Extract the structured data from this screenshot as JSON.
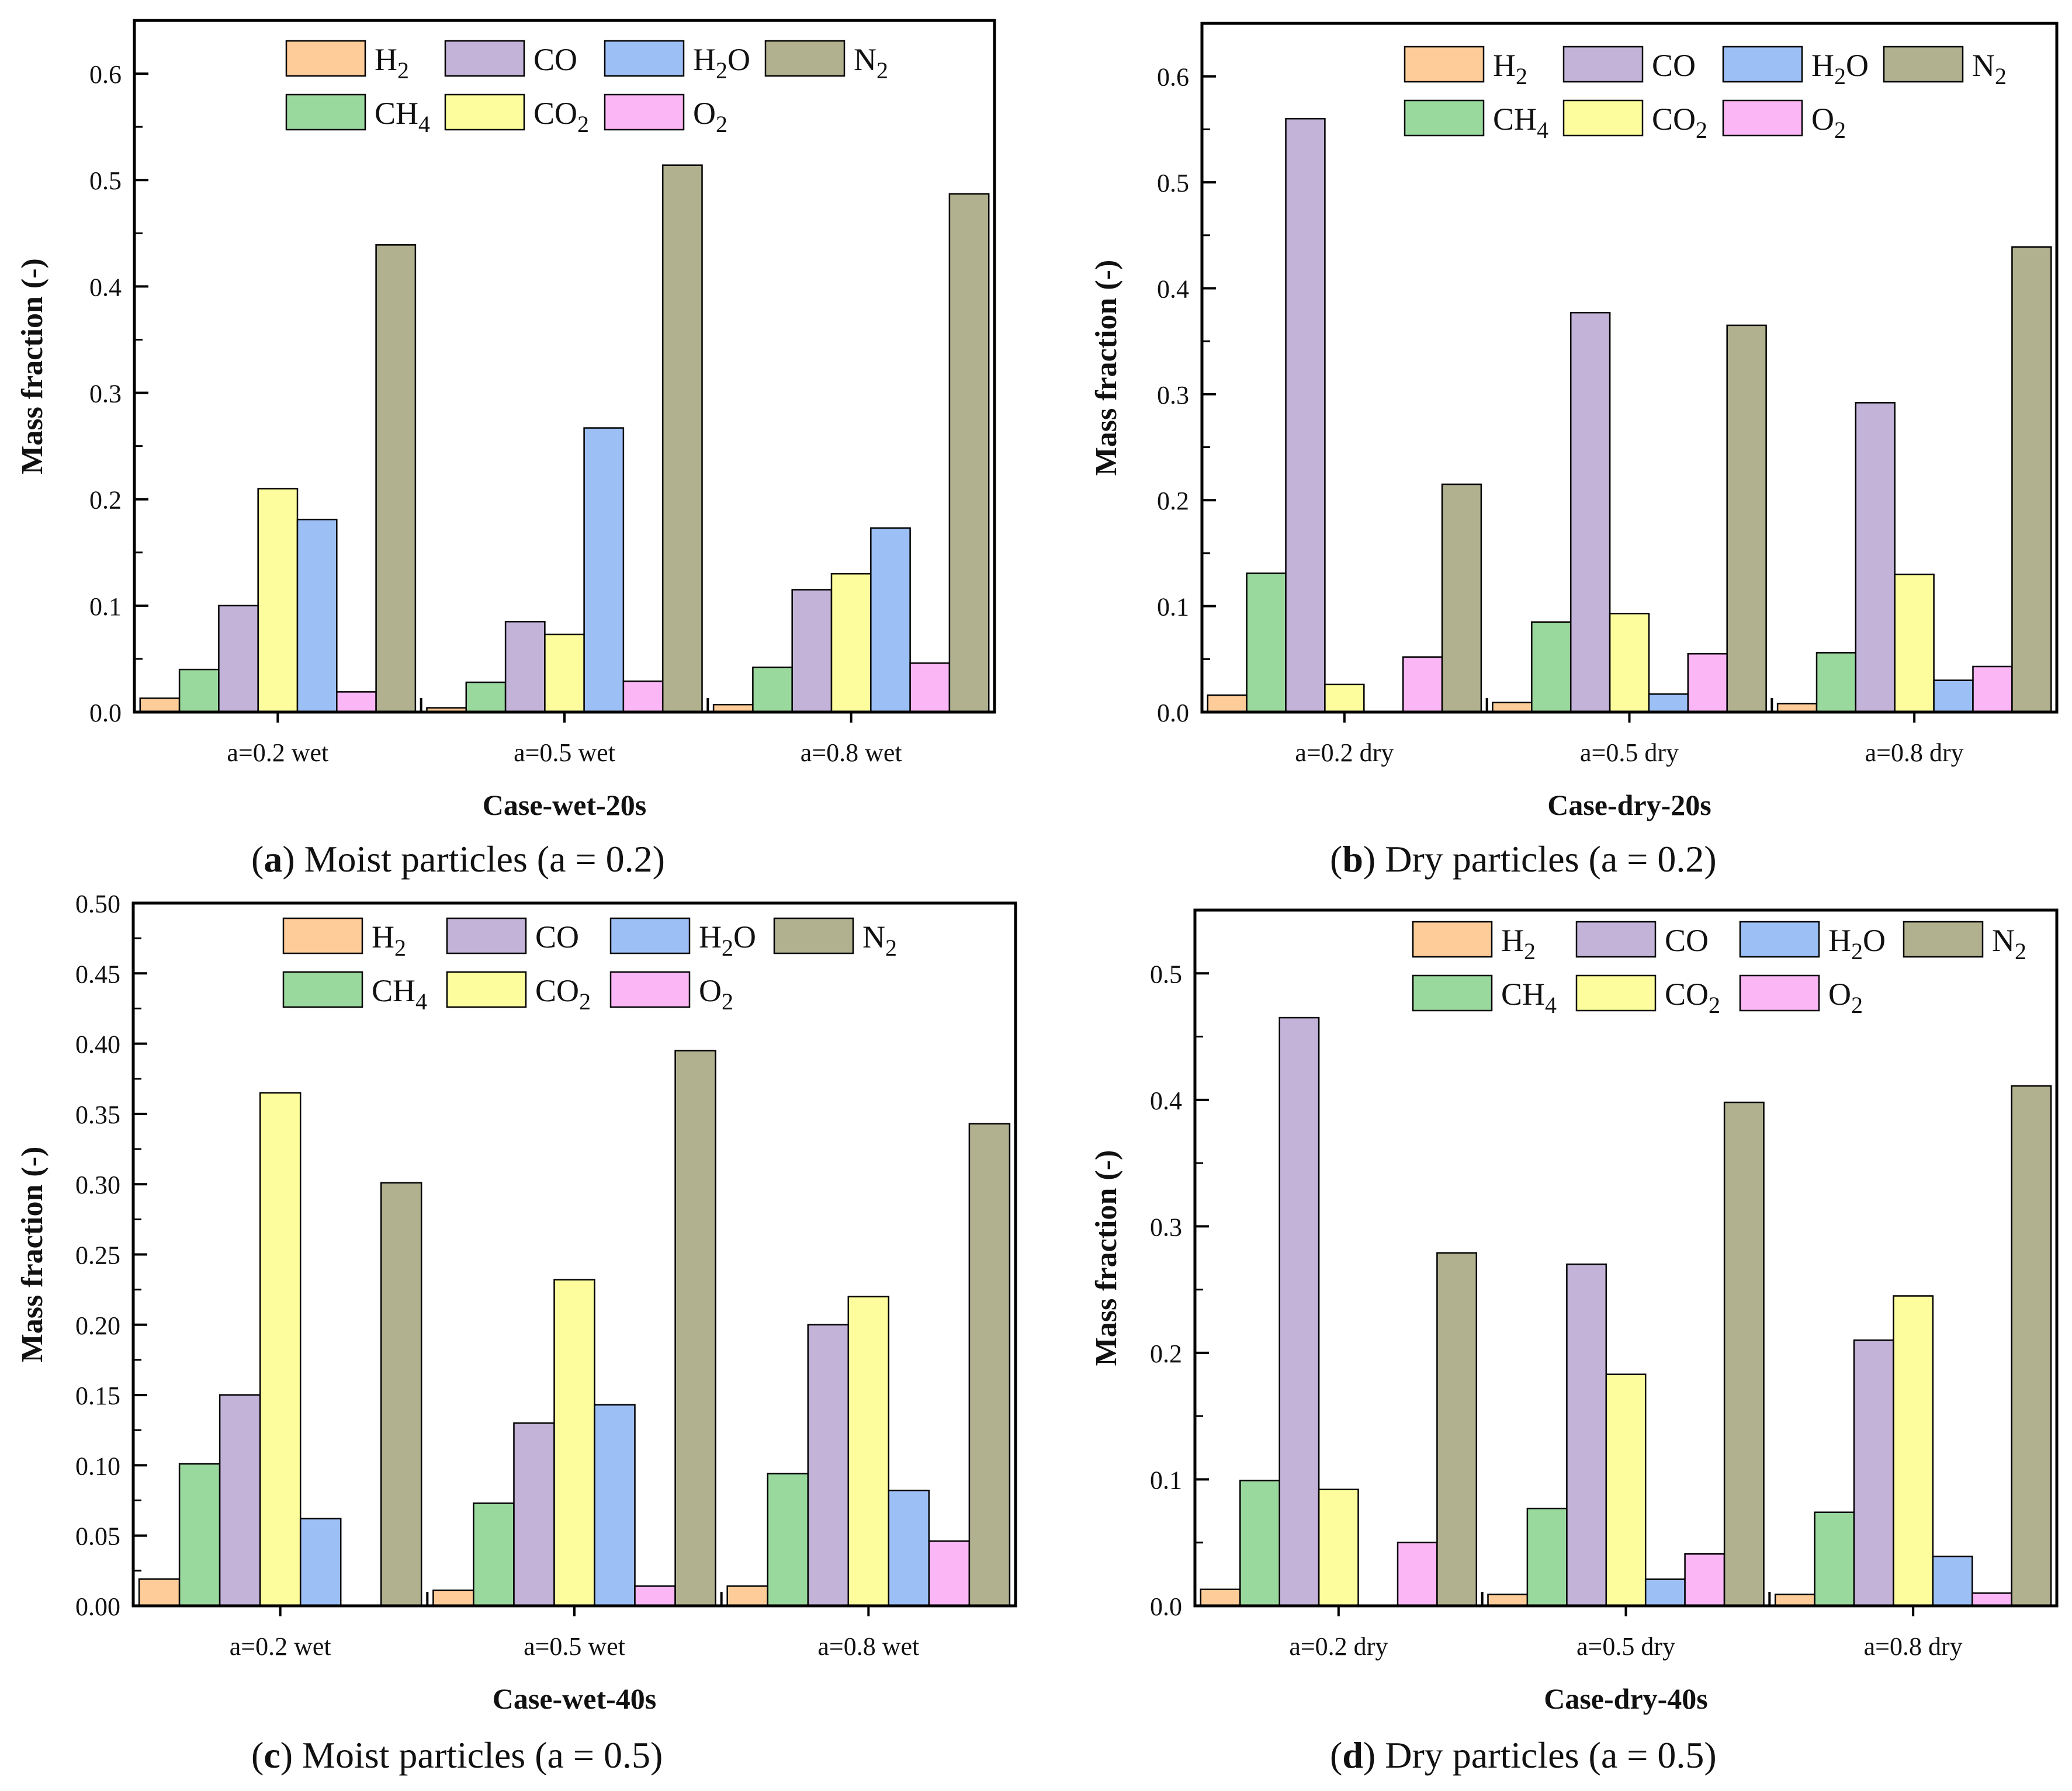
{
  "species": [
    {
      "key": "H2",
      "base": "H",
      "sub": "2",
      "color": "#fdcc99"
    },
    {
      "key": "CH4",
      "base": "CH",
      "sub": "4",
      "color": "#9ad99e"
    },
    {
      "key": "CO",
      "base": "CO",
      "sub": "",
      "color": "#c3b3d8"
    },
    {
      "key": "CO2",
      "base": "CO",
      "sub": "2",
      "color": "#fdfd9e"
    },
    {
      "key": "H2O",
      "base": "H",
      "sub": "2",
      "tail": "O",
      "color": "#9cc0f6"
    },
    {
      "key": "O2",
      "base": "O",
      "sub": "2",
      "color": "#fbb6f5"
    },
    {
      "key": "N2",
      "base": "N",
      "sub": "2",
      "color": "#b1b08f"
    }
  ],
  "captions": [
    {
      "letter": "a",
      "text": " Moist particles (a = 0.2)"
    },
    {
      "letter": "b",
      "text": " Dry particles (a = 0.2)"
    },
    {
      "letter": "c",
      "text": " Moist particles (a = 0.5)"
    },
    {
      "letter": "d",
      "text": " Dry particles (a = 0.5)"
    }
  ],
  "chart_data": [
    {
      "type": "bar",
      "xlabel": "Case-wet-20s",
      "ylabel": "Mass fraction (-)",
      "ylim": [
        0,
        0.65
      ],
      "yticks": [
        "0.0",
        "0.1",
        "0.2",
        "0.3",
        "0.4",
        "0.5",
        "0.6"
      ],
      "categories": [
        "a=0.2 wet",
        "a=0.5 wet",
        "a=0.8 wet"
      ],
      "series": [
        {
          "name": "H2",
          "values": [
            0.013,
            0.004,
            0.007
          ]
        },
        {
          "name": "CH4",
          "values": [
            0.04,
            0.028,
            0.042
          ]
        },
        {
          "name": "CO",
          "values": [
            0.1,
            0.085,
            0.115
          ]
        },
        {
          "name": "CO2",
          "values": [
            0.21,
            0.073,
            0.13
          ]
        },
        {
          "name": "H2O",
          "values": [
            0.181,
            0.267,
            0.173
          ]
        },
        {
          "name": "O2",
          "values": [
            0.019,
            0.029,
            0.046
          ]
        },
        {
          "name": "N2",
          "values": [
            0.439,
            0.514,
            0.487
          ]
        }
      ]
    },
    {
      "type": "bar",
      "xlabel": "Case-dry-20s",
      "ylabel": "Mass fraction (-)",
      "ylim": [
        0,
        0.65
      ],
      "yticks": [
        "0.0",
        "0.1",
        "0.2",
        "0.3",
        "0.4",
        "0.5",
        "0.6"
      ],
      "categories": [
        "a=0.2 dry",
        "a=0.5 dry",
        "a=0.8 dry"
      ],
      "series": [
        {
          "name": "H2",
          "values": [
            0.016,
            0.009,
            0.008
          ]
        },
        {
          "name": "CH4",
          "values": [
            0.131,
            0.085,
            0.056
          ]
        },
        {
          "name": "CO",
          "values": [
            0.56,
            0.377,
            0.292
          ]
        },
        {
          "name": "CO2",
          "values": [
            0.026,
            0.093,
            0.13
          ]
        },
        {
          "name": "H2O",
          "values": [
            0.0,
            0.017,
            0.03
          ]
        },
        {
          "name": "O2",
          "values": [
            0.052,
            0.055,
            0.043
          ]
        },
        {
          "name": "N2",
          "values": [
            0.215,
            0.365,
            0.439
          ]
        }
      ]
    },
    {
      "type": "bar",
      "xlabel": "Case-wet-40s",
      "ylabel": "Mass fraction (-)",
      "ylim": [
        0,
        0.5
      ],
      "yticks": [
        "0.00",
        "0.05",
        "0.10",
        "0.15",
        "0.20",
        "0.25",
        "0.30",
        "0.35",
        "0.40",
        "0.45",
        "0.50"
      ],
      "categories": [
        "a=0.2 wet",
        "a=0.5 wet",
        "a=0.8 wet"
      ],
      "series": [
        {
          "name": "H2",
          "values": [
            0.019,
            0.011,
            0.014
          ]
        },
        {
          "name": "CH4",
          "values": [
            0.101,
            0.073,
            0.094
          ]
        },
        {
          "name": "CO",
          "values": [
            0.15,
            0.13,
            0.2
          ]
        },
        {
          "name": "CO2",
          "values": [
            0.365,
            0.232,
            0.22
          ]
        },
        {
          "name": "H2O",
          "values": [
            0.062,
            0.143,
            0.082
          ]
        },
        {
          "name": "O2",
          "values": [
            0.0,
            0.014,
            0.046
          ]
        },
        {
          "name": "N2",
          "values": [
            0.301,
            0.395,
            0.343
          ]
        }
      ]
    },
    {
      "type": "bar",
      "xlabel": "Case-dry-40s",
      "ylabel": "Mass fraction (-)",
      "ylim": [
        0,
        0.55
      ],
      "yticks": [
        "0.0",
        "0.1",
        "0.2",
        "0.3",
        "0.4",
        "0.5"
      ],
      "categories": [
        "a=0.2 dry",
        "a=0.5 dry",
        "a=0.8 dry"
      ],
      "series": [
        {
          "name": "H2",
          "values": [
            0.013,
            0.009,
            0.009
          ]
        },
        {
          "name": "CH4",
          "values": [
            0.099,
            0.077,
            0.074
          ]
        },
        {
          "name": "CO",
          "values": [
            0.465,
            0.27,
            0.21
          ]
        },
        {
          "name": "CO2",
          "values": [
            0.092,
            0.183,
            0.245
          ]
        },
        {
          "name": "H2O",
          "values": [
            0.0,
            0.021,
            0.039
          ]
        },
        {
          "name": "O2",
          "values": [
            0.05,
            0.041,
            0.01
          ]
        },
        {
          "name": "N2",
          "values": [
            0.279,
            0.398,
            0.411
          ]
        }
      ]
    }
  ]
}
